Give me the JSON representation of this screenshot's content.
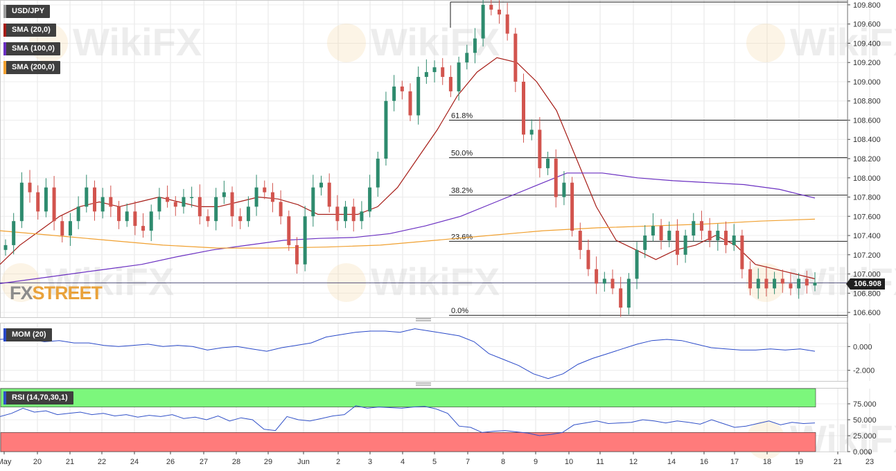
{
  "legends": {
    "main": "USD/JPY",
    "sma20": "SMA (20,0)",
    "sma100": "SMA (100,0)",
    "sma200": "SMA (200,0)",
    "mom": "MOM (20)",
    "rsi": "RSI (14,70,30,1)"
  },
  "brand": {
    "part1": "FX",
    "part2": "STREET"
  },
  "watermark": "WikiFX",
  "last_price": "106.908",
  "colors": {
    "up": "#2e8b6e",
    "down": "#d2544e",
    "sma20": "#a61c16",
    "sma100": "#6a2fc1",
    "sma200": "#f0a030",
    "momentum": "#2848c8",
    "rsi": "#3050c8",
    "overbought": "#7cf77c",
    "oversold": "#ff7b7b"
  },
  "chart_data": [
    {
      "type": "candlestick",
      "instrument": "USD/JPY",
      "timeframe": "hourly",
      "ylim": [
        106.55,
        109.85
      ],
      "y_ticks": [
        "109.800",
        "109.600",
        "109.400",
        "109.200",
        "109.000",
        "108.800",
        "108.600",
        "108.400",
        "108.200",
        "108.000",
        "107.800",
        "107.600",
        "107.400",
        "107.200",
        "107.000",
        "106.800",
        "106.600"
      ],
      "x_ticks": [
        "May",
        "20",
        "21",
        "22",
        "24",
        "26",
        "27",
        "28",
        "29",
        "Jun",
        "2",
        "3",
        "4",
        "5",
        "7",
        "8",
        "9",
        "10",
        "11",
        "12",
        "14",
        "16",
        "17",
        "18",
        "19",
        "21",
        "23"
      ],
      "close_path": [
        107.3,
        107.55,
        107.95,
        107.85,
        107.65,
        107.9,
        107.55,
        107.4,
        107.55,
        107.7,
        107.9,
        107.65,
        107.8,
        107.7,
        107.55,
        107.65,
        107.5,
        107.45,
        107.65,
        107.8,
        107.75,
        107.7,
        107.8,
        107.8,
        107.6,
        107.55,
        107.8,
        107.85,
        107.6,
        107.55,
        107.7,
        107.9,
        107.85,
        107.75,
        107.6,
        107.3,
        107.1,
        107.6,
        107.9,
        107.95,
        107.7,
        107.55,
        107.7,
        107.55,
        107.65,
        107.9,
        108.2,
        108.8,
        108.95,
        108.9,
        108.65,
        109.05,
        109.1,
        109.15,
        109.05,
        108.9,
        109.2,
        109.3,
        109.45,
        109.8,
        109.75,
        109.7,
        109.5,
        109.0,
        108.45,
        108.5,
        108.1,
        108.2,
        107.8,
        107.95,
        107.45,
        107.25,
        107.05,
        106.9,
        106.95,
        106.85,
        106.65,
        106.95,
        107.25,
        107.4,
        107.5,
        107.35,
        107.45,
        107.2,
        107.4,
        107.55,
        107.45,
        107.35,
        107.45,
        107.3,
        107.4,
        107.05,
        106.85,
        106.95,
        106.85,
        106.95,
        106.9,
        106.85,
        106.95,
        106.88,
        106.91
      ],
      "fibonacci": [
        {
          "label": "61.8%",
          "value": 108.6
        },
        {
          "label": "50.0%",
          "value": 108.21
        },
        {
          "label": "38.2%",
          "value": 107.82
        },
        {
          "label": "23.6%",
          "value": 107.34
        },
        {
          "label": "0.0%",
          "value": 106.57
        }
      ],
      "last_price": 106.908,
      "series": [
        {
          "name": "SMA (20,0)",
          "values": [
            107.1,
            107.3,
            107.45,
            107.6,
            107.7,
            107.75,
            107.7,
            107.75,
            107.8,
            107.75,
            107.7,
            107.7,
            107.75,
            107.8,
            107.78,
            107.72,
            107.62,
            107.62,
            107.62,
            107.7,
            107.9,
            108.2,
            108.5,
            108.85,
            109.1,
            109.25,
            109.2,
            109.0,
            108.7,
            108.2,
            107.7,
            107.35,
            107.25,
            107.15,
            107.25,
            107.3,
            107.4,
            107.3,
            107.1,
            107.05,
            107.0,
            106.95
          ]
        },
        {
          "name": "SMA (100,0)",
          "values": [
            106.9,
            106.95,
            107.0,
            107.05,
            107.1,
            107.18,
            107.25,
            107.3,
            107.35,
            107.37,
            107.38,
            107.42,
            107.5,
            107.6,
            107.75,
            107.9,
            108.05,
            108.05,
            108.0,
            107.97,
            107.95,
            107.93,
            107.88,
            107.79
          ]
        },
        {
          "name": "SMA (200,0)",
          "values": [
            107.45,
            107.4,
            107.35,
            107.3,
            107.27,
            107.27,
            107.28,
            107.3,
            107.35,
            107.4,
            107.45,
            107.48,
            107.5,
            107.52,
            107.55,
            107.57
          ]
        }
      ]
    },
    {
      "type": "line",
      "name": "MOM (20)",
      "ylim": [
        -2.9,
        2.0
      ],
      "y_ticks": [
        "0.000",
        "-2.000"
      ],
      "values": [
        0.6,
        0.7,
        0.6,
        0.4,
        0.5,
        0.3,
        0.3,
        0.1,
        0.0,
        0.1,
        0.2,
        0.0,
        0.1,
        0.0,
        -0.3,
        -0.1,
        0.0,
        -0.2,
        -0.4,
        -0.1,
        0.1,
        0.3,
        0.8,
        1.0,
        1.2,
        1.3,
        1.3,
        1.2,
        1.5,
        1.3,
        1.1,
        0.9,
        0.4,
        -0.6,
        -1.1,
        -1.6,
        -2.3,
        -2.7,
        -2.3,
        -1.5,
        -1.0,
        -0.6,
        -0.2,
        0.2,
        0.5,
        0.6,
        0.5,
        0.2,
        -0.1,
        -0.2,
        -0.3,
        -0.3,
        -0.2,
        -0.3,
        -0.2,
        -0.4
      ]
    },
    {
      "type": "line",
      "name": "RSI (14,70,30,1)",
      "ylim": [
        0,
        100
      ],
      "y_ticks": [
        "75.000",
        "50.000",
        "25.000",
        "0.000"
      ],
      "overbought": 70,
      "oversold": 30,
      "values": [
        55,
        60,
        68,
        62,
        64,
        58,
        60,
        62,
        58,
        60,
        56,
        58,
        54,
        57,
        55,
        58,
        52,
        54,
        50,
        56,
        48,
        53,
        50,
        35,
        33,
        55,
        50,
        48,
        52,
        56,
        58,
        72,
        68,
        70,
        69,
        68,
        70,
        71,
        67,
        60,
        40,
        38,
        30,
        32,
        33,
        31,
        29,
        25,
        27,
        30,
        42,
        45,
        48,
        44,
        45,
        46,
        50,
        48,
        45,
        48,
        46,
        43,
        50,
        44,
        38,
        40,
        44,
        48,
        42,
        46,
        44,
        45
      ]
    }
  ]
}
